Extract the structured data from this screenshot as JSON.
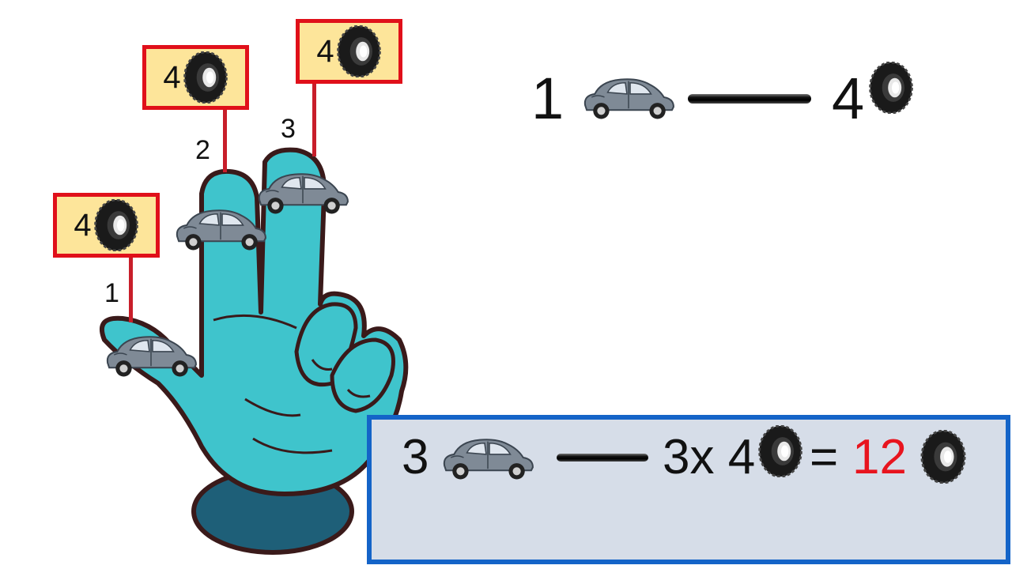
{
  "finger_tags": [
    {
      "number": "4",
      "finger_label": "1"
    },
    {
      "number": "4",
      "finger_label": "2"
    },
    {
      "number": "4",
      "finger_label": "3"
    }
  ],
  "top_equation": {
    "left_count": "1",
    "right_count": "4"
  },
  "result_equation": {
    "left_count": "3",
    "multiplier": "3x 4",
    "equals": "=",
    "total": "12"
  },
  "icons": [
    "car-icon",
    "tire-icon",
    "hand-illustration"
  ],
  "colors": {
    "tag_border": "#e0101a",
    "tag_fill": "#fde59a",
    "hand": "#3fc4cc",
    "result_box_border": "#1464c8",
    "result_box_fill": "#d6dde8",
    "total_color": "#e8141e"
  }
}
